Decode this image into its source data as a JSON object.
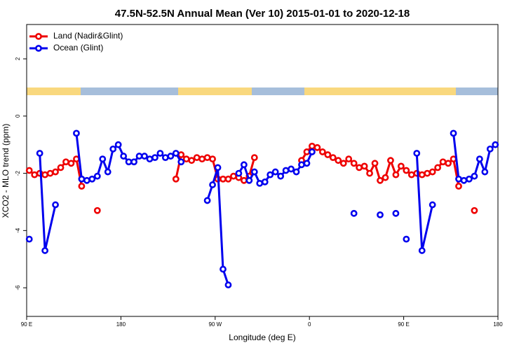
{
  "chart_data": {
    "type": "line",
    "title": "47.5N-52.5N Annual Mean (Ver 10)   2015-01-01 to 2020-12-18",
    "x_label": "Longitude (deg E)",
    "y_label": "XCO2 - MLO trend (ppm)",
    "xlim": [
      90,
      540
    ],
    "ylim": [
      -7,
      3.2
    ],
    "xticks": [
      {
        "value": 90,
        "label": "90 E"
      },
      180,
      {
        "value": 270,
        "label": "90 W"
      },
      {
        "value": 360,
        "label": "0"
      },
      {
        "value": 450,
        "label": "90 E"
      },
      {
        "value": 540,
        "label": "180"
      }
    ],
    "yticks": [
      -6,
      -4,
      -2,
      0,
      2
    ],
    "legend": "top-left",
    "series": [
      {
        "name": "Land (Nadir&Glint)",
        "color": "#ee0000",
        "x": [
          92.5,
          97.5,
          102.5,
          107.5,
          112.5,
          117.5,
          122.5,
          127.5,
          132.5,
          137.5,
          142.5,
          150,
          157.5,
          195,
          232.5,
          237.5,
          242.5,
          247.5,
          252.5,
          257.5,
          262.5,
          267.5,
          272.5,
          277.5,
          282.5,
          287.5,
          292.5,
          297.5,
          302.5,
          307.5,
          330,
          352.5,
          357.5,
          362.5,
          367.5,
          372.5,
          377.5,
          382.5,
          387.5,
          392.5,
          397.5,
          402.5,
          407.5,
          412.5,
          417.5,
          422.5,
          427.5,
          432.5,
          437.5,
          442.5,
          447.5,
          452.5,
          457.5,
          462.5,
          467.5,
          472.5,
          477.5,
          482.5,
          487.5,
          492.5,
          497.5,
          502.5,
          510,
          517.5
        ],
        "values": [
          -1.9,
          -2.05,
          -2.0,
          -2.05,
          -2.0,
          -1.95,
          -1.8,
          -1.6,
          -1.65,
          -1.5,
          -2.45,
          null,
          -3.3,
          null,
          -2.2,
          -1.35,
          -1.5,
          -1.55,
          -1.45,
          -1.5,
          -1.45,
          -1.5,
          -2.2,
          -2.2,
          -2.2,
          -2.1,
          -2.15,
          -2.25,
          -2.1,
          -1.45,
          null,
          -1.55,
          -1.25,
          -1.05,
          -1.1,
          -1.25,
          -1.35,
          -1.45,
          -1.55,
          -1.65,
          -1.5,
          -1.65,
          -1.8,
          -1.75,
          -2.0,
          -1.65,
          -2.25,
          -2.15,
          -1.55,
          -2.05,
          -1.75,
          -1.9,
          -2.05,
          -2.0,
          -2.05,
          -2.0,
          -1.95,
          -1.8,
          -1.6,
          -1.65,
          -1.5,
          -2.45,
          null,
          -3.3
        ]
      },
      {
        "name": "Ocean (Glint)",
        "color": "#0000ee",
        "x": [
          92.5,
          97.5,
          102.5,
          107.5,
          117.5,
          127.5,
          137.5,
          142.5,
          147.5,
          152.5,
          157.5,
          162.5,
          167.5,
          172.5,
          177.5,
          182.5,
          187.5,
          192.5,
          197.5,
          202.5,
          207.5,
          212.5,
          217.5,
          222.5,
          227.5,
          232.5,
          237.5,
          250,
          262.5,
          267.5,
          272.5,
          277.5,
          282.5,
          287.5,
          292.5,
          297.5,
          302.5,
          307.5,
          312.5,
          317.5,
          322.5,
          327.5,
          332.5,
          337.5,
          342.5,
          347.5,
          352.5,
          357.5,
          362.5,
          380,
          402.5,
          415,
          427.5,
          435,
          442.5,
          447.5,
          452.5,
          457.5,
          462.5,
          467.5,
          477.5,
          490,
          497.5,
          502.5,
          507.5,
          512.5,
          517.5,
          522.5,
          527.5,
          532.5,
          537.5
        ],
        "values": [
          -4.3,
          null,
          -1.3,
          -4.7,
          -3.1,
          null,
          -0.6,
          -2.2,
          -2.25,
          -2.2,
          -2.1,
          -1.5,
          -1.95,
          -1.15,
          -1.0,
          -1.4,
          -1.6,
          -1.6,
          -1.4,
          -1.4,
          -1.5,
          -1.45,
          -1.3,
          -1.45,
          -1.4,
          -1.3,
          -1.6,
          null,
          -2.95,
          -2.4,
          -1.8,
          -5.35,
          -5.9,
          null,
          -2.0,
          -1.7,
          -2.25,
          -1.95,
          -2.35,
          -2.3,
          -2.05,
          -1.95,
          -2.1,
          -1.9,
          -1.85,
          -1.95,
          -1.7,
          -1.65,
          -1.25,
          null,
          -3.4,
          null,
          -3.45,
          null,
          -3.4,
          null,
          -4.3,
          null,
          -1.3,
          -4.7,
          -3.1,
          null,
          -0.6,
          -2.2,
          -2.25,
          -2.2,
          -2.1,
          -1.5,
          -1.95,
          -1.15,
          -1.0
        ]
      }
    ]
  }
}
